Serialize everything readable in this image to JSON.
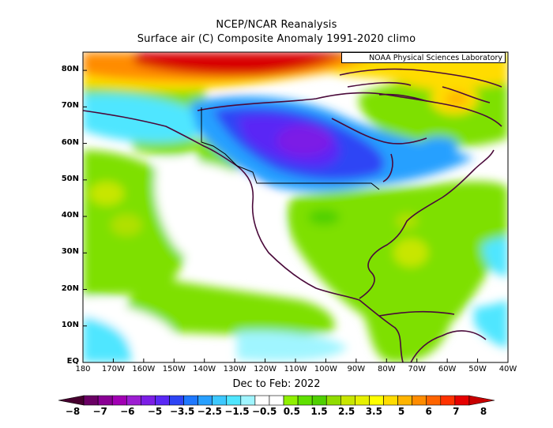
{
  "title_line1": "NCEP/NCAR Reanalysis",
  "title_line2": "Surface air (C) Composite Anomaly 1991-2020 climo",
  "credit": "NOAA Physical Sciences Laboratory",
  "period_label": "Dec to Feb: 2022",
  "map": {
    "projection": "cylindrical",
    "lon_range": [
      -180,
      -40
    ],
    "lat_range": [
      0,
      85
    ],
    "y_axis_labels": [
      "EQ",
      "10N",
      "20N",
      "30N",
      "40N",
      "50N",
      "60N",
      "70N",
      "80N"
    ],
    "x_axis_labels": [
      "180",
      "170W",
      "160W",
      "150W",
      "140W",
      "130W",
      "120W",
      "110W",
      "100W",
      "90W",
      "80W",
      "70W",
      "60W",
      "50W",
      "40W"
    ]
  },
  "colorbar": {
    "labels": [
      "-8",
      "-7",
      "-6",
      "-5",
      "-3.5",
      "-2.5",
      "-1.5",
      "-0.5",
      "0.5",
      "1.5",
      "2.5",
      "3.5",
      "5",
      "6",
      "7",
      "8"
    ],
    "colors": [
      "#46002e",
      "#6a0064",
      "#8a0094",
      "#a200b4",
      "#9d1ed2",
      "#7c1ee6",
      "#5a28f5",
      "#2d44f5",
      "#1e78ff",
      "#28a0ff",
      "#3cc8ff",
      "#50e6ff",
      "#a0f5ff",
      "#ffffff",
      "#ffffff",
      "#90f000",
      "#60e000",
      "#50d000",
      "#90dc00",
      "#c8e600",
      "#e6f000",
      "#ffff00",
      "#ffdc00",
      "#ffb400",
      "#ff8c00",
      "#ff6400",
      "#ff3200",
      "#e60000",
      "#c80000"
    ]
  }
}
